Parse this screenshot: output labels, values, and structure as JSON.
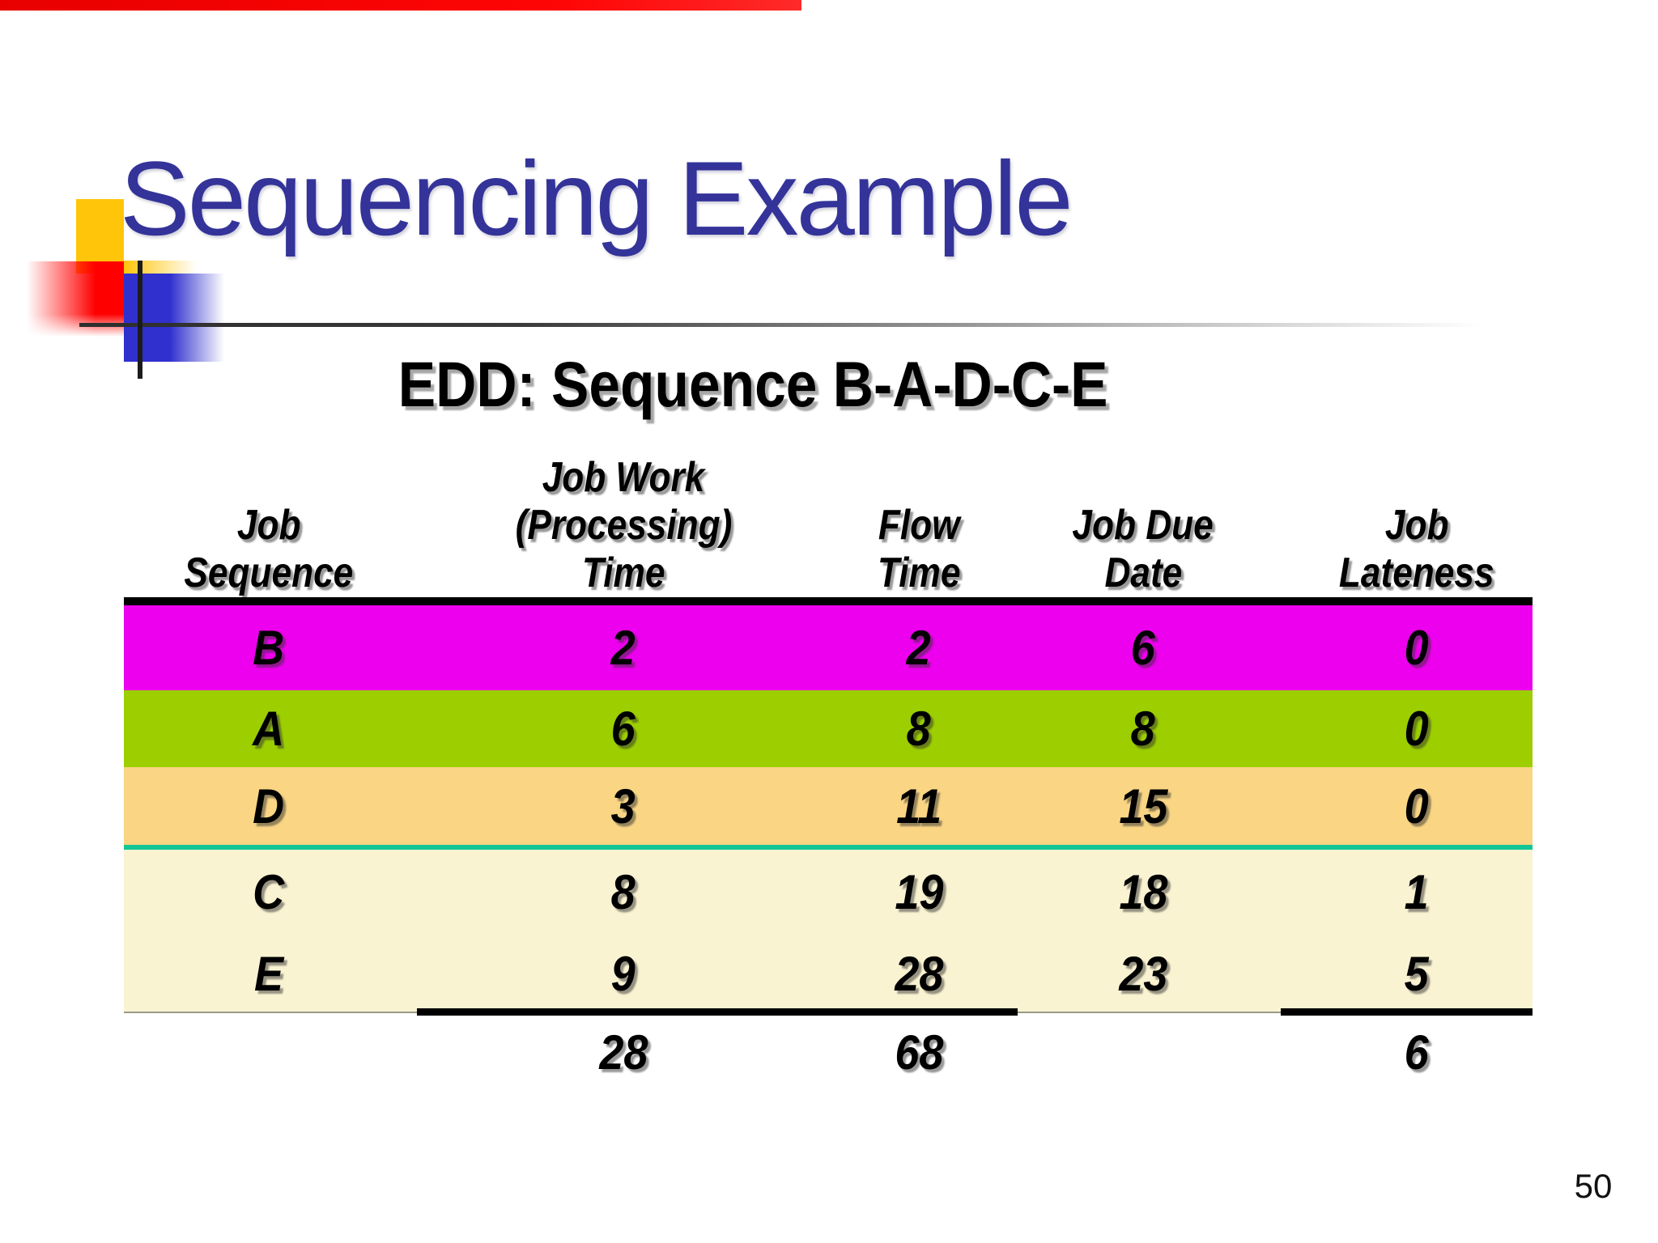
{
  "slide": {
    "title": "Sequencing Example",
    "subtitle": "EDD: Sequence B-A-D-C-E",
    "page_number": "50"
  },
  "chart_data": {
    "type": "table",
    "title": "EDD: Sequence B-A-D-C-E",
    "columns": [
      "Job Sequence",
      "Job Work (Processing) Time",
      "Flow Time",
      "Job Due Date",
      "Job Lateness"
    ],
    "rows": [
      [
        "B",
        2,
        2,
        6,
        0
      ],
      [
        "A",
        6,
        8,
        8,
        0
      ],
      [
        "D",
        3,
        11,
        15,
        0
      ],
      [
        "C",
        8,
        19,
        18,
        1
      ],
      [
        "E",
        9,
        28,
        23,
        5
      ]
    ],
    "totals": {
      "job_work_time": 28,
      "flow_time": 68,
      "job_lateness": 6
    }
  },
  "table": {
    "headers": [
      {
        "lines": [
          "Job",
          "Sequence"
        ]
      },
      {
        "lines": [
          "Job Work",
          "(Processing)",
          "Time"
        ]
      },
      {
        "lines": [
          "Flow",
          "Time"
        ]
      },
      {
        "lines": [
          "Job Due",
          "Date"
        ]
      },
      {
        "lines": [
          "Job",
          "Lateness"
        ]
      }
    ],
    "rows": [
      {
        "job": "B",
        "work": "2",
        "flow": "2",
        "due": "6",
        "late": "0",
        "color": "#ED00ED"
      },
      {
        "job": "A",
        "work": "6",
        "flow": "8",
        "due": "8",
        "late": "0",
        "color": "#9CCE00"
      },
      {
        "job": "D",
        "work": "3",
        "flow": "11",
        "due": "15",
        "late": "0",
        "color": "#F9D584"
      },
      {
        "job": "C",
        "work": "8",
        "flow": "19",
        "due": "18",
        "late": "1",
        "color": "#FAF3D2"
      },
      {
        "job": "E",
        "work": "9",
        "flow": "28",
        "due": "23",
        "late": "5",
        "color": "#FAF3D2"
      }
    ],
    "totals": {
      "work": "28",
      "flow": "68",
      "late": "6"
    }
  },
  "colors": {
    "title_text": "#333399",
    "accent_red": "#FF0000",
    "accent_yellow": "#FFC50A",
    "accent_blue": "#3030CF",
    "divider_teal": "#12C795",
    "row_b_magenta": "#ED00ED",
    "row_a_green": "#9CCE00",
    "row_d_tan": "#F9D584",
    "row_ce_cream": "#FAF3D2"
  }
}
